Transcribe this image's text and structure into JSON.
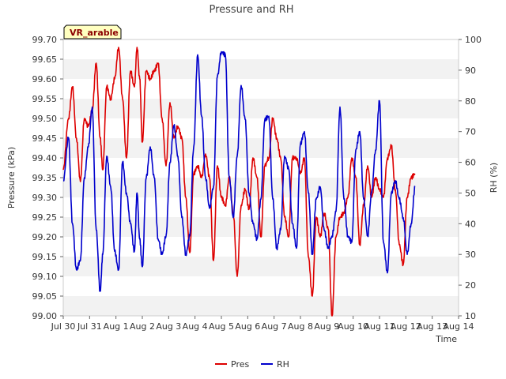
{
  "chart_data": {
    "type": "line",
    "title": "Pressure and RH",
    "xlabel": "Time",
    "ylabel_left": "Pressure (kPa)",
    "ylabel_right": "RH (%)",
    "annotation": "VR_arable",
    "x_ticks": [
      "Jul 30",
      "Jul 31",
      "Aug 1",
      "Aug 2",
      "Aug 3",
      "Aug 4",
      "Aug 5",
      "Aug 6",
      "Aug 7",
      "Aug 8",
      "Aug 9",
      "Aug 10",
      "Aug 11",
      "Aug 12",
      "Aug 13",
      "Aug 14"
    ],
    "xlim_days": [
      0,
      15
    ],
    "ylim_left": [
      99.0,
      99.7
    ],
    "yticks_left": [
      "99.00",
      "99.05",
      "99.10",
      "99.15",
      "99.20",
      "99.25",
      "99.30",
      "99.35",
      "99.40",
      "99.45",
      "99.50",
      "99.55",
      "99.60",
      "99.65",
      "99.70"
    ],
    "ylim_right": [
      10,
      100
    ],
    "yticks_right": [
      "10",
      "20",
      "30",
      "40",
      "50",
      "60",
      "70",
      "80",
      "90",
      "100"
    ],
    "grid": "horizontal-bands",
    "legend_position": "bottom-center",
    "series": [
      {
        "name": "Pres",
        "axis": "left",
        "color": "#dd0000",
        "x": [
          0.0,
          0.2,
          0.35,
          0.5,
          0.65,
          0.8,
          0.95,
          1.1,
          1.25,
          1.4,
          1.5,
          1.65,
          1.8,
          1.95,
          2.1,
          2.25,
          2.4,
          2.55,
          2.7,
          2.8,
          2.9,
          3.0,
          3.15,
          3.3,
          3.45,
          3.6,
          3.75,
          3.9,
          4.05,
          4.2,
          4.35,
          4.5,
          4.65,
          4.8,
          4.95,
          5.1,
          5.25,
          5.4,
          5.55,
          5.7,
          5.85,
          6.0,
          6.15,
          6.3,
          6.45,
          6.6,
          6.75,
          6.9,
          7.05,
          7.2,
          7.35,
          7.5,
          7.65,
          7.8,
          7.95,
          8.1,
          8.25,
          8.4,
          8.55,
          8.7,
          8.85,
          9.0,
          9.15,
          9.3,
          9.45,
          9.6,
          9.75,
          9.9,
          10.05,
          10.2,
          10.35,
          10.5,
          10.65,
          10.8,
          10.95,
          11.1,
          11.25,
          11.4,
          11.55,
          11.7,
          11.85,
          12.0,
          12.15,
          12.3,
          12.45,
          12.6,
          12.75,
          12.9,
          13.05,
          13.2,
          13.35
        ],
        "values": [
          99.37,
          99.5,
          99.58,
          99.45,
          99.34,
          99.5,
          99.48,
          99.52,
          99.64,
          99.45,
          99.37,
          99.58,
          99.55,
          99.6,
          99.68,
          99.55,
          99.4,
          99.62,
          99.58,
          99.68,
          99.6,
          99.44,
          99.62,
          99.6,
          99.62,
          99.64,
          99.5,
          99.38,
          99.54,
          99.45,
          99.48,
          99.45,
          99.3,
          99.16,
          99.36,
          99.38,
          99.35,
          99.41,
          99.35,
          99.14,
          99.38,
          99.3,
          99.28,
          99.35,
          99.26,
          99.1,
          99.28,
          99.32,
          99.27,
          99.4,
          99.35,
          99.2,
          99.38,
          99.4,
          99.5,
          99.45,
          99.4,
          99.25,
          99.2,
          99.4,
          99.4,
          99.36,
          99.4,
          99.15,
          99.05,
          99.25,
          99.2,
          99.26,
          99.22,
          99.0,
          99.2,
          99.25,
          99.26,
          99.3,
          99.4,
          99.35,
          99.18,
          99.28,
          99.38,
          99.3,
          99.35,
          99.32,
          99.3,
          99.4,
          99.43,
          99.32,
          99.18,
          99.13,
          99.3,
          99.35,
          99.36
        ]
      },
      {
        "name": "RH",
        "axis": "right",
        "color": "#0000cc",
        "x": [
          0.0,
          0.2,
          0.35,
          0.5,
          0.65,
          0.8,
          0.95,
          1.1,
          1.25,
          1.4,
          1.5,
          1.65,
          1.8,
          1.95,
          2.1,
          2.25,
          2.4,
          2.55,
          2.7,
          2.8,
          2.9,
          3.0,
          3.15,
          3.3,
          3.45,
          3.6,
          3.75,
          3.9,
          4.05,
          4.2,
          4.35,
          4.5,
          4.65,
          4.8,
          4.95,
          5.1,
          5.25,
          5.4,
          5.55,
          5.7,
          5.85,
          6.0,
          6.15,
          6.3,
          6.45,
          6.6,
          6.75,
          6.9,
          7.05,
          7.2,
          7.35,
          7.5,
          7.65,
          7.8,
          7.95,
          8.1,
          8.25,
          8.4,
          8.55,
          8.7,
          8.85,
          9.0,
          9.15,
          9.3,
          9.45,
          9.6,
          9.75,
          9.9,
          10.05,
          10.2,
          10.35,
          10.5,
          10.65,
          10.8,
          10.95,
          11.1,
          11.25,
          11.4,
          11.55,
          11.7,
          11.85,
          12.0,
          12.15,
          12.3,
          12.45,
          12.6,
          12.75,
          12.9,
          13.05,
          13.2,
          13.35
        ],
        "values": [
          54,
          68,
          40,
          25,
          28,
          55,
          65,
          78,
          38,
          18,
          30,
          62,
          52,
          31,
          25,
          60,
          50,
          40,
          31,
          50,
          35,
          26,
          55,
          65,
          55,
          35,
          30,
          36,
          60,
          72,
          62,
          42,
          30,
          36,
          65,
          95,
          75,
          55,
          45,
          52,
          88,
          96,
          95,
          55,
          42,
          62,
          85,
          74,
          50,
          40,
          35,
          48,
          74,
          75,
          48,
          32,
          38,
          62,
          58,
          40,
          32,
          66,
          70,
          50,
          30,
          48,
          52,
          38,
          32,
          36,
          44,
          78,
          48,
          36,
          34,
          64,
          70,
          48,
          36,
          50,
          64,
          80,
          34,
          24,
          50,
          54,
          48,
          42,
          30,
          40,
          52
        ]
      }
    ]
  }
}
